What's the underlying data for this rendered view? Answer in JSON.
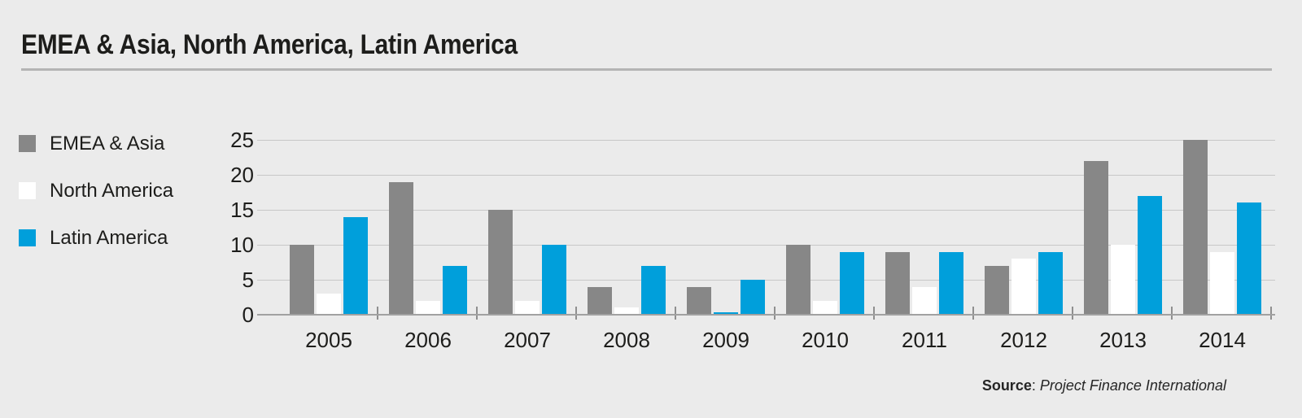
{
  "title": "EMEA & Asia, North America, Latin America",
  "source": {
    "label": "Source",
    "separator": ": ",
    "text": "Project Finance International"
  },
  "colors": {
    "background": "#ebebeb",
    "title_text": "#1d1d1b",
    "title_rule": "#b4b4b4",
    "gridline": "#c7c7c7",
    "baseline": "#a1a1a1",
    "tick": "#8f8f8f",
    "emea_asia_bar": "#878787",
    "north_america_bar": "#ffffff",
    "latin_america_bar": "#009fdb"
  },
  "chart_data": {
    "type": "bar",
    "title": "EMEA & Asia, North America, Latin America",
    "categories": [
      "2005",
      "2006",
      "2007",
      "2008",
      "2009",
      "2010",
      "2011",
      "2012",
      "2013",
      "2014"
    ],
    "series": [
      {
        "name": "EMEA & Asia",
        "color": "#878787",
        "values": [
          10,
          19,
          15,
          4,
          4,
          10,
          9,
          7,
          22,
          25
        ]
      },
      {
        "name": "North America",
        "color": "#ffffff",
        "values": [
          3,
          2,
          2,
          1,
          0.3,
          2,
          4,
          8,
          10,
          9
        ]
      },
      {
        "name": "Latin America",
        "color": "#009fdb",
        "values": [
          14,
          7,
          10,
          7,
          5,
          9,
          9,
          9,
          17,
          16
        ]
      }
    ],
    "bar_color_overrides": [
      {
        "series_index": 1,
        "category_index": 4,
        "color": "#009fdb"
      }
    ],
    "xlabel": "",
    "ylabel": "",
    "y_ticks": [
      0,
      5,
      10,
      15,
      20,
      25
    ],
    "ylim": [
      0,
      25
    ],
    "grid": true,
    "legend_position": "left"
  }
}
